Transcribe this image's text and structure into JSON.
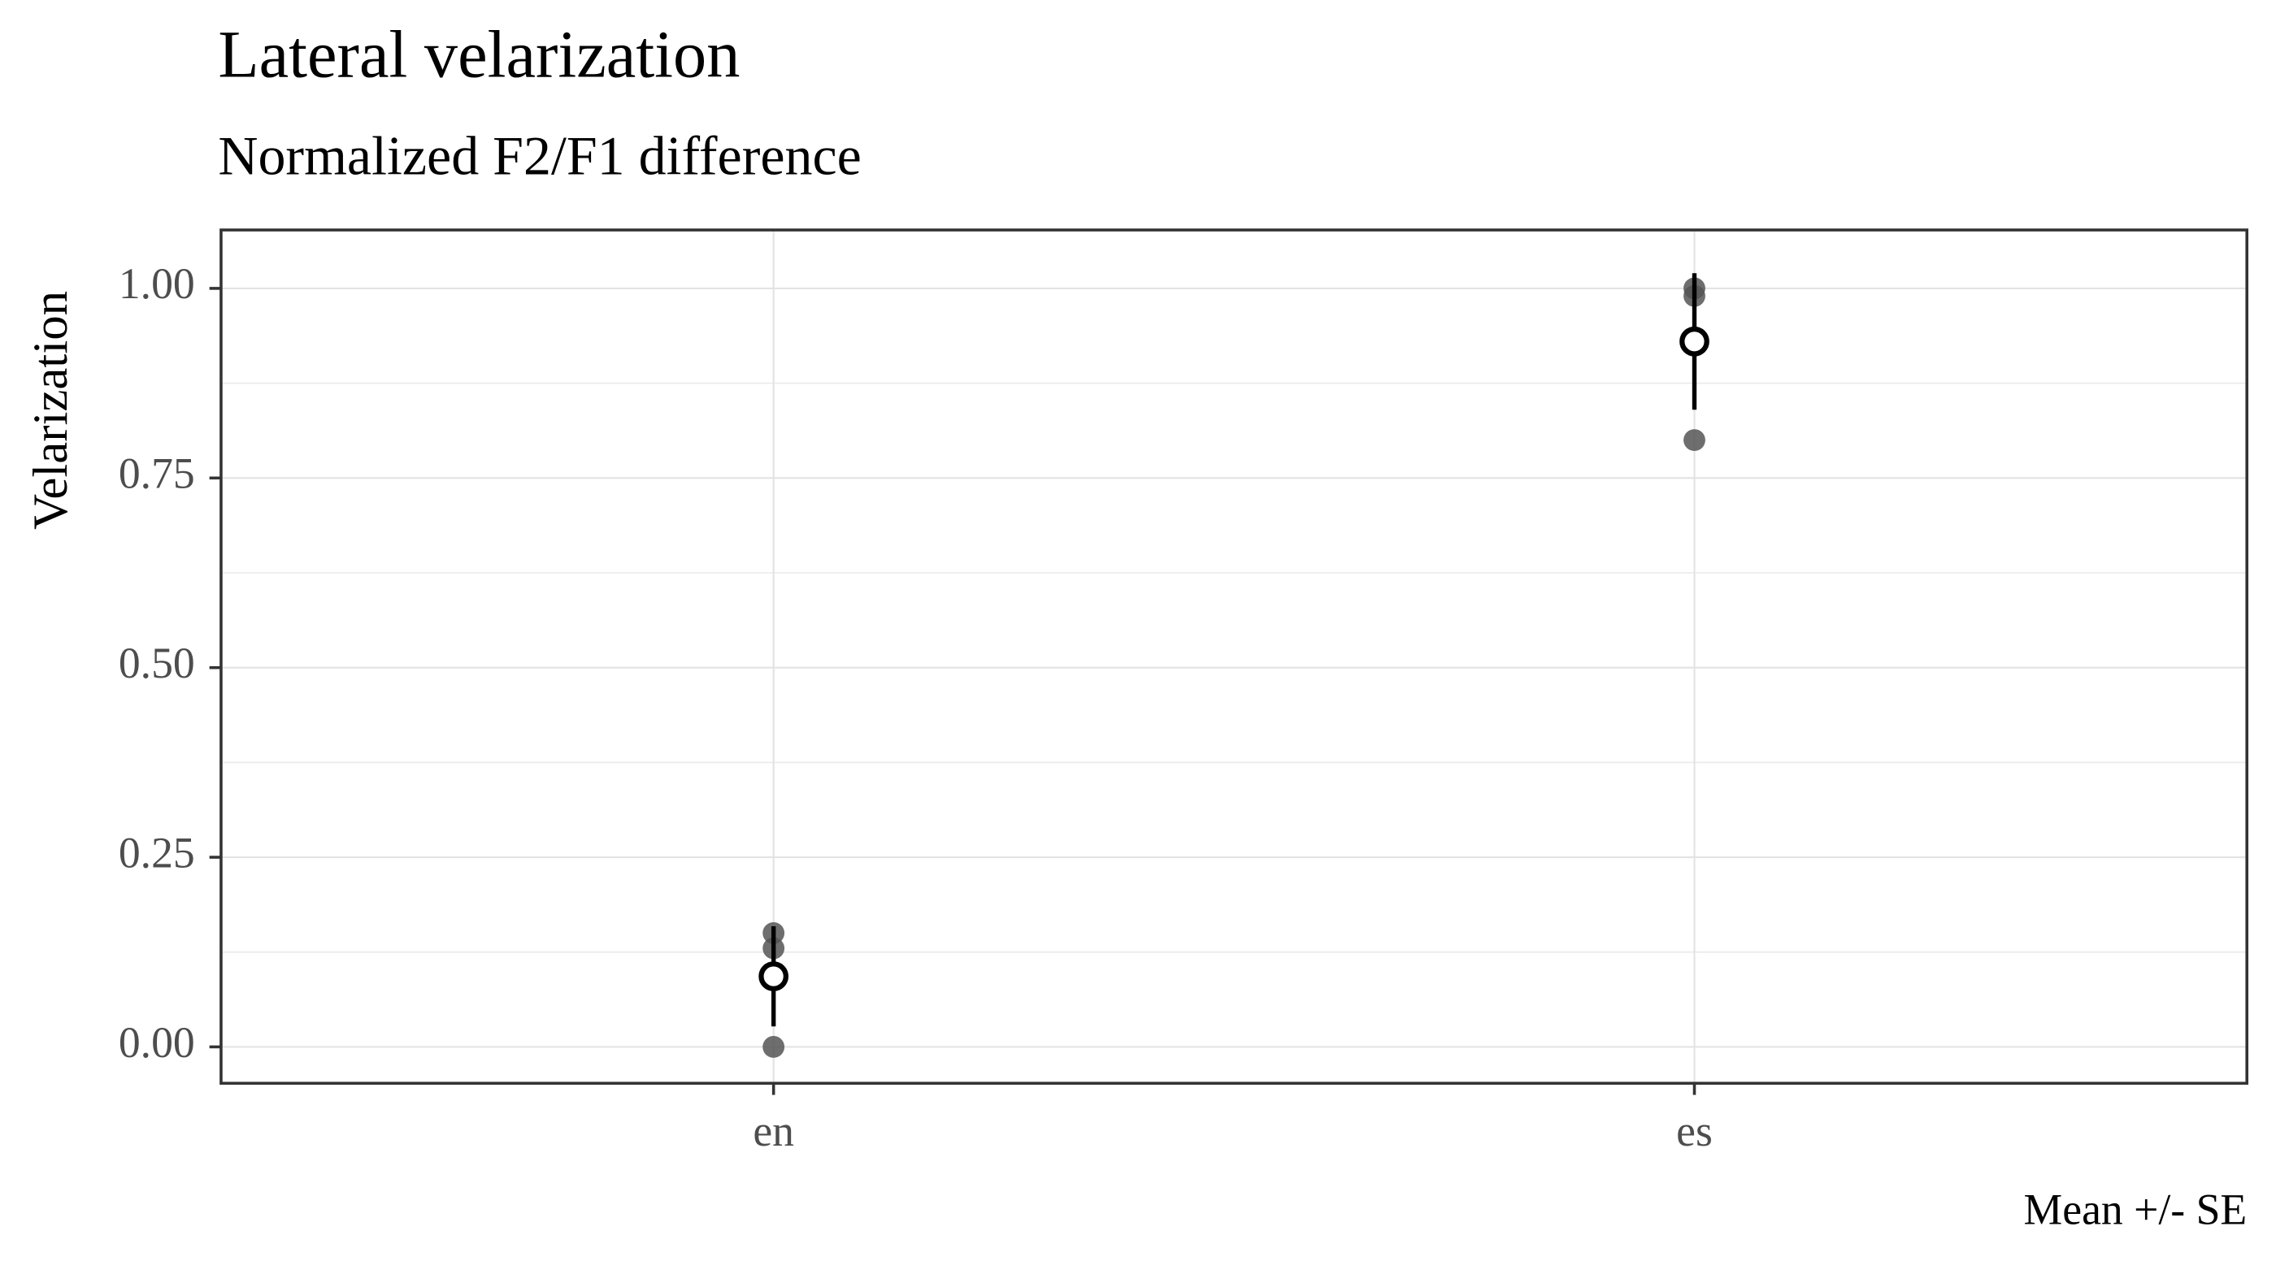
{
  "chart_data": {
    "type": "pointrange",
    "title": "Lateral velarization",
    "subtitle": "Normalized F2/F1 difference",
    "y_label": "Velarization",
    "caption": "Mean +/- SE",
    "categories": [
      "en",
      "es"
    ],
    "points": [
      [
        0.15,
        0.13,
        0.0
      ],
      [
        1.0,
        0.99,
        0.8
      ]
    ],
    "mean": [
      0.093,
      0.93
    ],
    "se": [
      0.066,
      0.09
    ],
    "point_color": "#555555",
    "ylim": [
      -0.048,
      1.077
    ],
    "yticks": [
      {
        "value": 0,
        "label": "0.00"
      },
      0.25,
      {
        "value": 0.5,
        "label": "0.50"
      },
      0.75,
      {
        "value": 1,
        "label": "1.00"
      }
    ],
    "grid": true
  }
}
